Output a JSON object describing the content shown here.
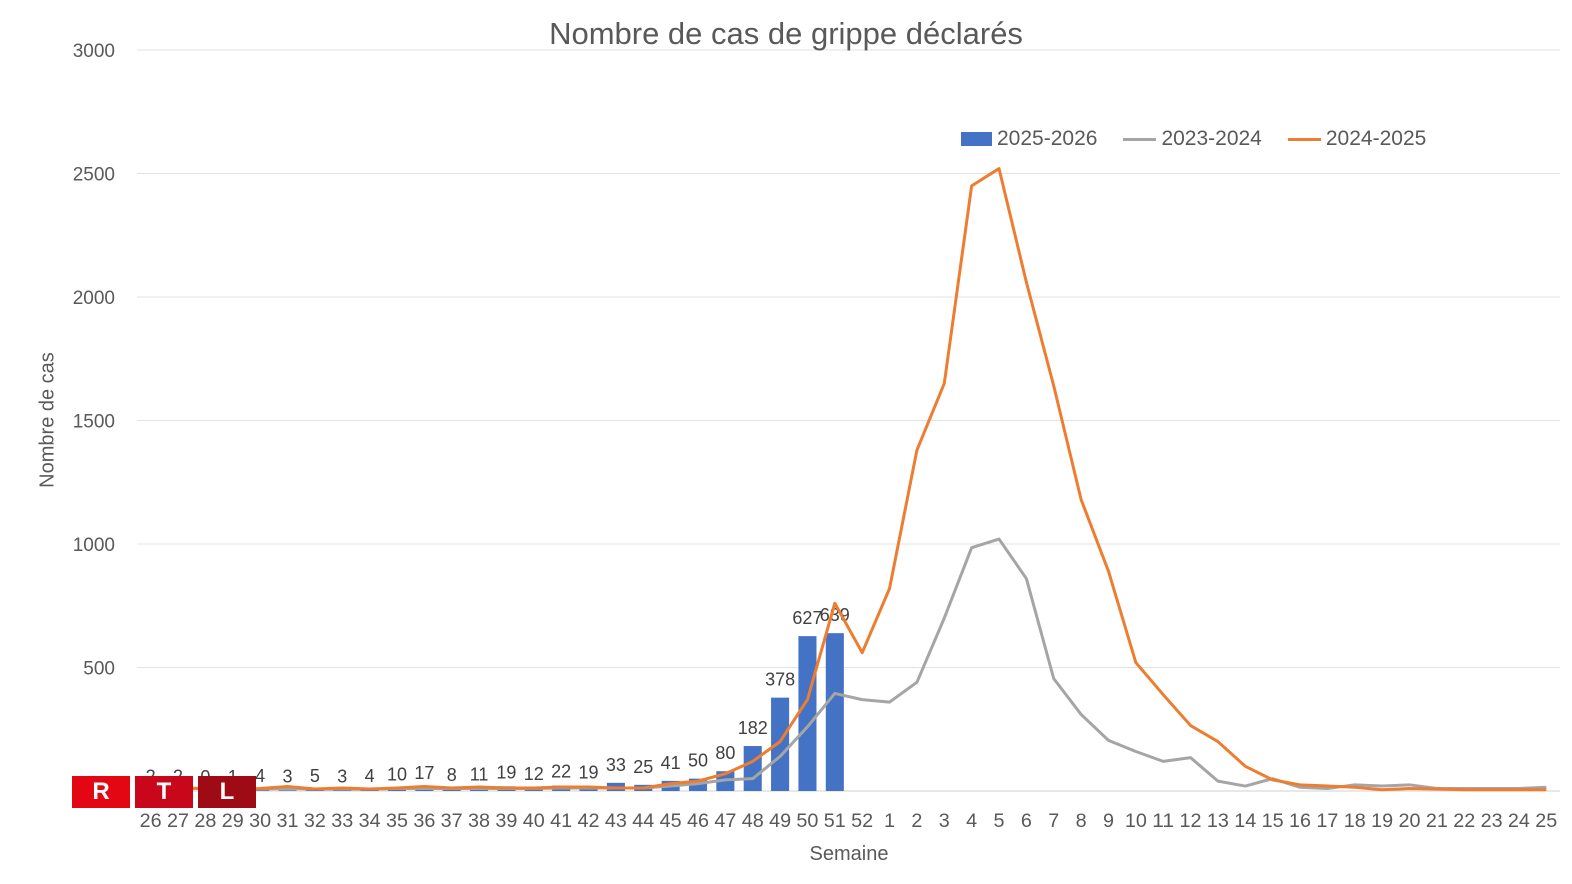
{
  "chart_data": {
    "type": "bar+line",
    "title": "Nombre de cas de grippe déclarés",
    "xlabel": "Semaine",
    "ylabel": "Nombre de cas",
    "ylim": [
      0,
      3000
    ],
    "yticks": [
      0,
      500,
      1000,
      1500,
      2000,
      2500,
      3000
    ],
    "grid": true,
    "legend_position": "top-right",
    "categories": [
      "26",
      "27",
      "28",
      "29",
      "30",
      "31",
      "32",
      "33",
      "34",
      "35",
      "36",
      "37",
      "38",
      "39",
      "40",
      "41",
      "42",
      "43",
      "44",
      "45",
      "46",
      "47",
      "48",
      "49",
      "50",
      "51",
      "52",
      "1",
      "2",
      "3",
      "4",
      "5",
      "6",
      "7",
      "8",
      "9",
      "10",
      "11",
      "12",
      "13",
      "14",
      "15",
      "16",
      "17",
      "18",
      "19",
      "20",
      "21",
      "22",
      "23",
      "24",
      "25"
    ],
    "series": [
      {
        "name": "2025-2026",
        "kind": "bar",
        "color": "#4472C4",
        "data_labels": true,
        "values": [
          2,
          2,
          0,
          1,
          4,
          3,
          5,
          3,
          4,
          10,
          17,
          8,
          11,
          19,
          12,
          22,
          19,
          33,
          25,
          41,
          50,
          80,
          182,
          378,
          627,
          639,
          null,
          null,
          null,
          null,
          null,
          null,
          null,
          null,
          null,
          null,
          null,
          null,
          null,
          null,
          null,
          null,
          null,
          null,
          null,
          null,
          null,
          null,
          null,
          null,
          null,
          null
        ]
      },
      {
        "name": "2023-2024",
        "kind": "line",
        "color": "#A5A5A5",
        "values": [
          10,
          10,
          10,
          8,
          8,
          10,
          8,
          8,
          8,
          10,
          10,
          10,
          10,
          10,
          10,
          12,
          12,
          12,
          12,
          20,
          30,
          45,
          50,
          140,
          260,
          395,
          370,
          360,
          440,
          700,
          985,
          1020,
          860,
          455,
          310,
          205,
          160,
          120,
          135,
          40,
          20,
          50,
          15,
          10,
          25,
          20,
          25,
          10,
          10,
          10,
          10,
          15
        ]
      },
      {
        "name": "2024-2025",
        "kind": "line",
        "color": "#ED7D31",
        "values": [
          10,
          12,
          10,
          8,
          10,
          18,
          8,
          12,
          8,
          12,
          18,
          12,
          16,
          12,
          12,
          16,
          16,
          12,
          12,
          30,
          40,
          70,
          120,
          200,
          370,
          760,
          560,
          820,
          1380,
          1650,
          2450,
          2520,
          2060,
          1640,
          1180,
          890,
          520,
          390,
          265,
          200,
          100,
          45,
          25,
          20,
          15,
          5,
          10,
          8,
          5,
          5,
          5,
          5
        ]
      }
    ]
  },
  "logo": {
    "letters": [
      "R",
      "T",
      "L"
    ],
    "colors": [
      "#E30613",
      "#C8081A",
      "#9E0B14"
    ]
  }
}
